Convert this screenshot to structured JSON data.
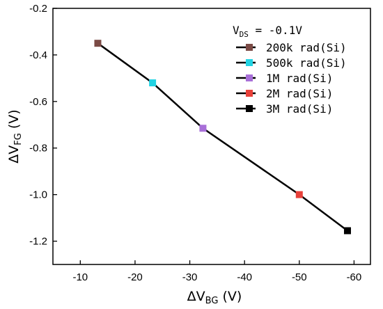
{
  "chart_data": {
    "type": "line",
    "xlabel": {
      "main": "ΔV",
      "sub": "BG",
      "unit": " (V)"
    },
    "ylabel": {
      "main": "ΔV",
      "sub": "FG",
      "unit": " (V)"
    },
    "xlim": [
      -5,
      -63
    ],
    "ylim": [
      -1.3,
      -0.2
    ],
    "xticks": [
      -10,
      -20,
      -30,
      -40,
      -50,
      -60
    ],
    "yticks": [
      -0.2,
      -0.4,
      -0.6,
      -0.8,
      -1.0,
      -1.2
    ],
    "xtick_labels": [
      "-10",
      "-20",
      "-30",
      "-40",
      "-50",
      "-60"
    ],
    "ytick_labels": [
      "-0.2",
      "-0.4",
      "-0.6",
      "-0.8",
      "-1.0",
      "-1.2"
    ],
    "legend": {
      "title": {
        "main": "V",
        "sub": "DS",
        "rest": " = -0.1V"
      },
      "placement": "top-right"
    },
    "line_color": "#000000",
    "series": [
      {
        "name": "200k rad(Si)",
        "x": -13.2,
        "y": -0.35,
        "color": "#7b4a45"
      },
      {
        "name": "500k rad(Si)",
        "x": -23.2,
        "y": -0.52,
        "color": "#22d3e3"
      },
      {
        "name": "1M rad(Si)",
        "x": -32.4,
        "y": -0.715,
        "color": "#a86fd8"
      },
      {
        "name": "2M rad(Si)",
        "x": -50.0,
        "y": -1.0,
        "color": "#e8413a"
      },
      {
        "name": "3M rad(Si)",
        "x": -58.8,
        "y": -1.155,
        "color": "#000000"
      }
    ]
  }
}
